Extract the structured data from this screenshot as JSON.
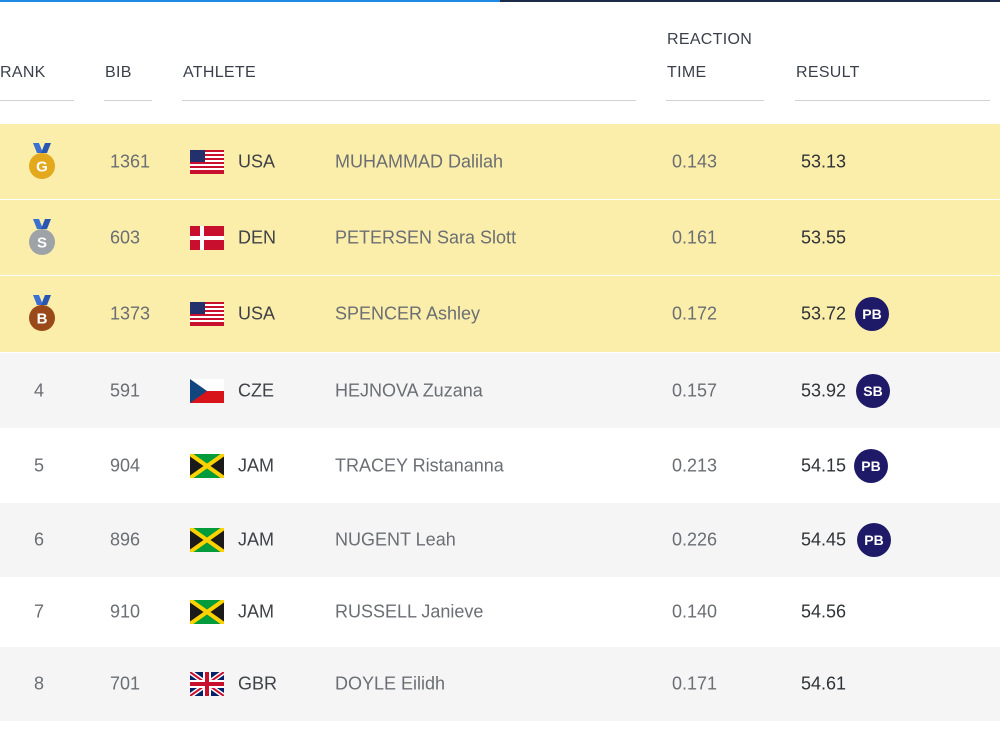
{
  "header": {
    "rank": "RANK",
    "bib": "BIB",
    "athlete": "ATHLETE",
    "reaction_line1": "REACTION",
    "reaction_line2": "TIME",
    "result": "RESULT"
  },
  "colors": {
    "medal_row": "#fbeeaa",
    "alt_row": "#f5f5f5",
    "badge": "#1f1a68",
    "gold": "#e3a81c",
    "silver": "#9ea3a8",
    "bronze": "#9a4a1a"
  },
  "rows": [
    {
      "rank": "",
      "medal": "G",
      "bib": "1361",
      "flag": "usa-flag-icon",
      "nat": "USA",
      "name": "MUHAMMAD Dalilah",
      "rt": "0.143",
      "result": "53.13",
      "badge": ""
    },
    {
      "rank": "",
      "medal": "S",
      "bib": "603",
      "flag": "den-flag-icon",
      "nat": "DEN",
      "name": "PETERSEN Sara Slott",
      "rt": "0.161",
      "result": "53.55",
      "badge": ""
    },
    {
      "rank": "",
      "medal": "B",
      "bib": "1373",
      "flag": "usa-flag-icon",
      "nat": "USA",
      "name": "SPENCER Ashley",
      "rt": "0.172",
      "result": "53.72",
      "badge": "PB"
    },
    {
      "rank": "4",
      "medal": "",
      "bib": "591",
      "flag": "cze-flag-icon",
      "nat": "CZE",
      "name": "HEJNOVA Zuzana",
      "rt": "0.157",
      "result": "53.92",
      "badge": "SB"
    },
    {
      "rank": "5",
      "medal": "",
      "bib": "904",
      "flag": "jam-flag-icon",
      "nat": "JAM",
      "name": "TRACEY Ristananna",
      "rt": "0.213",
      "result": "54.15",
      "badge": "PB"
    },
    {
      "rank": "6",
      "medal": "",
      "bib": "896",
      "flag": "jam-flag-icon",
      "nat": "JAM",
      "name": "NUGENT Leah",
      "rt": "0.226",
      "result": "54.45",
      "badge": "PB"
    },
    {
      "rank": "7",
      "medal": "",
      "bib": "910",
      "flag": "jam-flag-icon",
      "nat": "JAM",
      "name": "RUSSELL Janieve",
      "rt": "0.140",
      "result": "54.56",
      "badge": ""
    },
    {
      "rank": "8",
      "medal": "",
      "bib": "701",
      "flag": "gbr-flag-icon",
      "nat": "GBR",
      "name": "DOYLE Eilidh",
      "rt": "0.171",
      "result": "54.61",
      "badge": ""
    }
  ]
}
